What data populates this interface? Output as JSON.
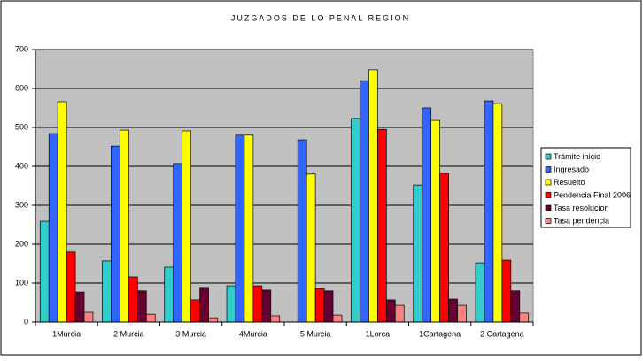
{
  "chart_data": {
    "type": "bar",
    "title": "JUZGADOS DE LO PENAL REGION",
    "categories": [
      "1Murcia",
      "2 Murcia",
      "3 Murcia",
      "4Murcia",
      "5 Murcia",
      "1Lorca",
      "1Cartagena",
      "2 Cartagena"
    ],
    "series": [
      {
        "name": "Trámite inicio",
        "color": "#33cccc",
        "values": [
          259,
          157,
          141,
          93,
          0,
          523,
          352,
          152
        ]
      },
      {
        "name": "Ingresado",
        "color": "#3366ff",
        "values": [
          484,
          452,
          407,
          480,
          468,
          620,
          550,
          568
        ]
      },
      {
        "name": "Resuelto",
        "color": "#ffff00",
        "values": [
          566,
          493,
          491,
          480,
          380,
          648,
          518,
          561
        ]
      },
      {
        "name": "Pendencia Final 2006",
        "color": "#ff0000",
        "values": [
          180,
          116,
          57,
          93,
          86,
          495,
          382,
          159
        ]
      },
      {
        "name": "Tasa resolucion",
        "color": "#660033",
        "values": [
          77,
          80,
          89,
          82,
          80,
          57,
          59,
          80
        ]
      },
      {
        "name": "Tasa pendencia",
        "color": "#ff8080",
        "values": [
          25,
          20,
          11,
          16,
          18,
          43,
          43,
          23
        ]
      }
    ],
    "ylim": [
      0,
      700
    ],
    "yticks": [
      0,
      100,
      200,
      300,
      400,
      500,
      600,
      700
    ],
    "grid": true,
    "legend": "right"
  }
}
